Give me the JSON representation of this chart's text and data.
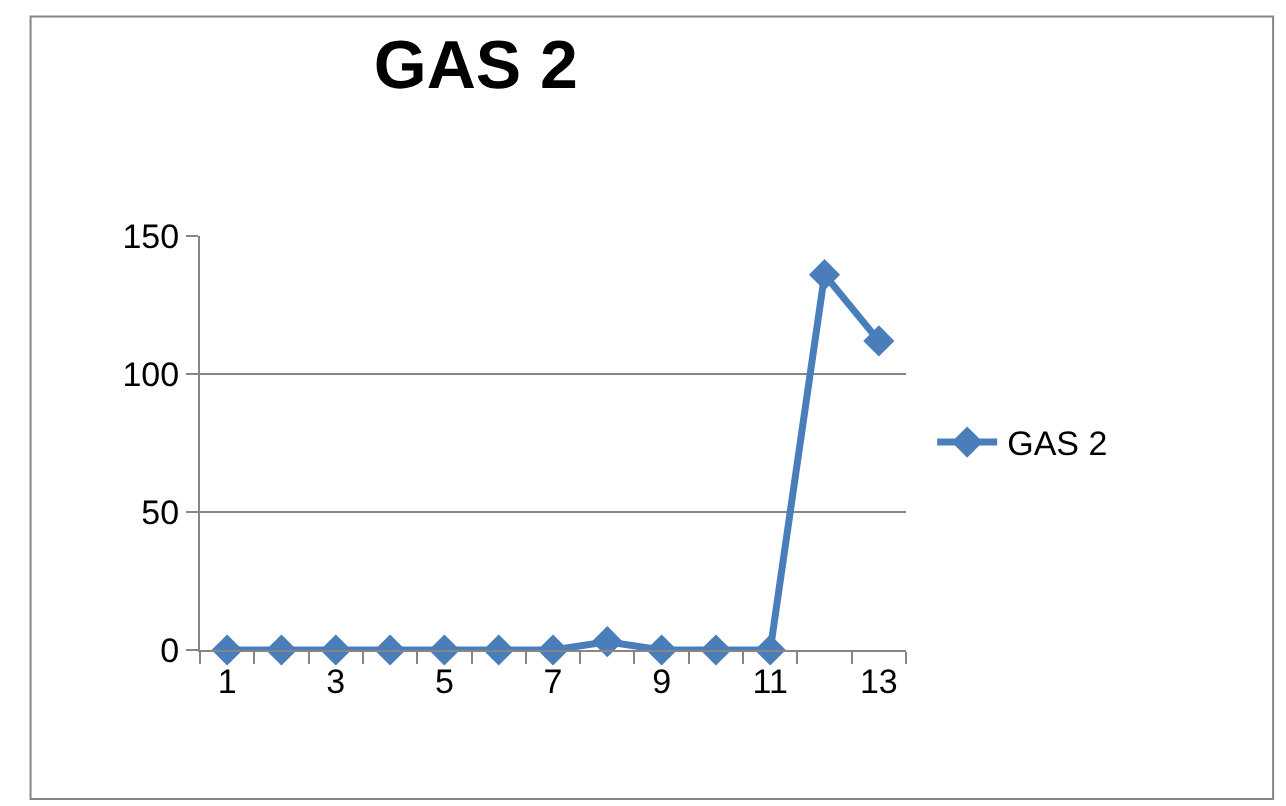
{
  "chart_data": {
    "type": "line",
    "title": "GAS 2",
    "x": [
      1,
      2,
      3,
      4,
      5,
      6,
      7,
      8,
      9,
      10,
      11,
      12,
      13
    ],
    "series": [
      {
        "name": "GAS 2",
        "color": "#4a7ebb",
        "values": [
          0,
          0,
          0,
          0,
          0,
          0,
          0,
          3,
          0,
          0,
          0,
          136,
          112
        ]
      }
    ],
    "xlim": [
      0.5,
      13.5
    ],
    "xticks": [
      1,
      3,
      5,
      7,
      9,
      11,
      13
    ],
    "ylim": [
      0,
      150
    ],
    "yticks": [
      0,
      50,
      100,
      150
    ],
    "grid": "y",
    "legend": "right",
    "marker": "diamond",
    "line_style": "solid"
  }
}
